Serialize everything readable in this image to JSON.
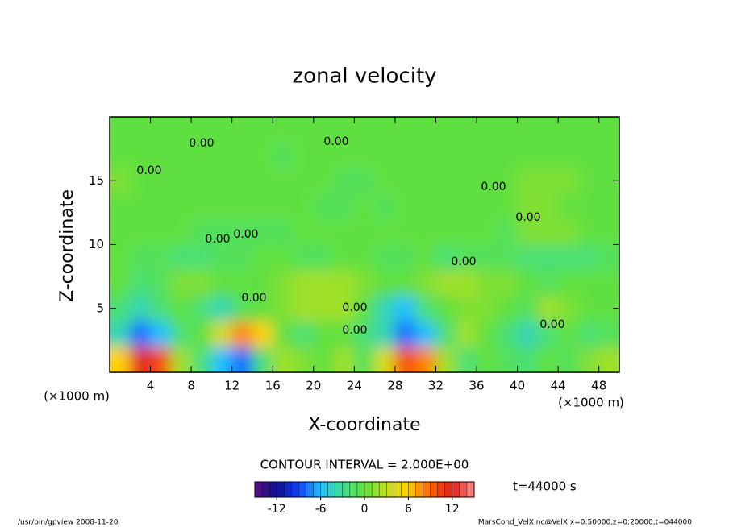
{
  "chart_data": {
    "type": "contour",
    "title": "zonal velocity",
    "xlabel": "X-coordinate",
    "ylabel": "Z-coordinate",
    "x_unit": "(×1000 m)",
    "y_unit": "(×1000 m)",
    "contour_interval": "CONTOUR INTERVAL = 2.000E+00",
    "time_label": "t=44000 s",
    "contour_label": "0.00",
    "footer_left": "/usr/bin/gpview  2008-11-20",
    "footer_right": "MarsCond_VelX.nc@VelX,x=0:50000,z=0:20000,t=044000",
    "xlim": [
      0,
      50
    ],
    "ylim": [
      0,
      20
    ],
    "xticks": [
      4,
      8,
      12,
      16,
      20,
      24,
      28,
      32,
      36,
      40,
      44,
      48
    ],
    "yticks": [
      5,
      10,
      15
    ],
    "z": [
      [
        6,
        12,
        10,
        2,
        -2,
        -6,
        -8,
        -2,
        2,
        1,
        0,
        2,
        -1,
        4,
        10,
        8,
        2,
        -2,
        0,
        -1,
        -2,
        0,
        -1,
        1,
        2
      ],
      [
        -4,
        -8,
        -6,
        -2,
        0,
        4,
        8,
        6,
        0,
        -2,
        0,
        0,
        -2,
        -4,
        -8,
        -6,
        -2,
        2,
        0,
        -2,
        -4,
        -2,
        0,
        -2,
        -1
      ],
      [
        -2,
        -4,
        -2,
        0,
        -2,
        -4,
        -1,
        0,
        1,
        2,
        2,
        2,
        0,
        -4,
        -6,
        -2,
        0,
        1,
        1,
        0,
        -1,
        2,
        1,
        0,
        0
      ],
      [
        0,
        -2,
        -1,
        1,
        1,
        0,
        0,
        0,
        1,
        2,
        2,
        2,
        1,
        0,
        0,
        1,
        2,
        2,
        1,
        1,
        0,
        -1,
        0,
        0,
        0
      ],
      [
        0,
        -1,
        -1,
        -2,
        -2,
        -1,
        -1,
        0,
        0,
        -1,
        -1,
        0,
        0,
        -1,
        -1,
        0,
        -2,
        -1,
        -1,
        -1,
        -2,
        -2,
        -2,
        -2,
        -1
      ],
      [
        0,
        0,
        0,
        0,
        -1,
        -1,
        -1,
        -1,
        -1,
        0,
        0,
        0,
        0,
        0,
        0,
        0,
        0,
        0,
        0,
        -1,
        1,
        1,
        1,
        0,
        0
      ],
      [
        0,
        0,
        0,
        0,
        0,
        0,
        0,
        0,
        0,
        0,
        -1,
        -1,
        0,
        -1,
        0,
        0,
        0,
        0,
        0,
        0,
        1,
        1,
        0,
        0,
        0
      ],
      [
        1,
        0,
        0,
        0,
        0,
        0,
        0,
        0,
        0,
        0,
        0,
        -1,
        -1,
        0,
        0,
        0,
        0,
        0,
        0,
        0,
        1,
        1,
        1,
        0,
        0
      ],
      [
        0,
        0,
        0,
        0,
        0,
        0,
        0,
        0,
        -1,
        0,
        0,
        0,
        0,
        0,
        0,
        0,
        0,
        0,
        0,
        0,
        0,
        0,
        0,
        0,
        0
      ],
      [
        0,
        0,
        0,
        0,
        0,
        0,
        0,
        0,
        0,
        0,
        0,
        0,
        0,
        0,
        0,
        0,
        0,
        0,
        0,
        0,
        0,
        0,
        0,
        0,
        0
      ]
    ],
    "colorbar": {
      "lim": [
        -15,
        15
      ],
      "ticks": [
        -12,
        -6,
        0,
        6,
        12
      ],
      "colors": [
        "#5a1080",
        "#10108f",
        "#1040ff",
        "#20c0ff",
        "#40e090",
        "#60e040",
        "#c0e020",
        "#ffd000",
        "#ff6000",
        "#e02020",
        "#ff9090"
      ]
    }
  }
}
